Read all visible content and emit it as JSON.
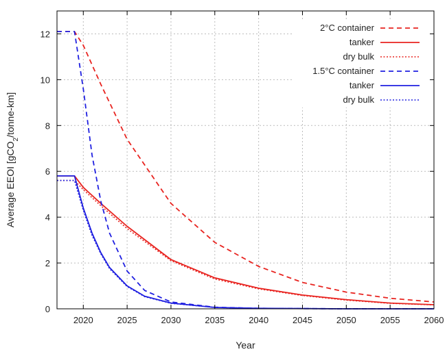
{
  "chart_data": {
    "type": "line",
    "title": "",
    "xlabel": "Year",
    "ylabel": "Average EEOI [gCO2/tonne-km]",
    "ylabel_main": "Average EEOI [gCO",
    "ylabel_sub": "2",
    "ylabel_tail": "/tonne-km]",
    "xlim": [
      2017,
      2060
    ],
    "ylim": [
      0,
      13
    ],
    "xticks": [
      2020,
      2025,
      2030,
      2035,
      2040,
      2045,
      2050,
      2055,
      2060
    ],
    "yticks": [
      0,
      2,
      4,
      6,
      8,
      10,
      12
    ],
    "grid": true,
    "legend_position": "top-right",
    "series": [
      {
        "name": "2°C container",
        "color": "#e8231f",
        "dash": "dashed",
        "x": [
          2017,
          2019,
          2020,
          2022,
          2025,
          2030,
          2035,
          2040,
          2045,
          2050,
          2055,
          2060
        ],
        "y": [
          12.1,
          12.1,
          11.5,
          9.8,
          7.4,
          4.6,
          2.9,
          1.85,
          1.15,
          0.73,
          0.46,
          0.3
        ]
      },
      {
        "name": "tanker",
        "color": "#e8231f",
        "dash": "solid",
        "x": [
          2017,
          2019,
          2020,
          2022,
          2025,
          2030,
          2035,
          2040,
          2045,
          2050,
          2055,
          2060
        ],
        "y": [
          5.8,
          5.8,
          5.3,
          4.6,
          3.6,
          2.15,
          1.35,
          0.9,
          0.6,
          0.4,
          0.25,
          0.18
        ]
      },
      {
        "name": "dry bulk",
        "color": "#e8231f",
        "dash": "dotted",
        "x": [
          2017,
          2019,
          2020,
          2022,
          2025,
          2030,
          2035,
          2040,
          2045,
          2050,
          2055,
          2060
        ],
        "y": [
          5.6,
          5.6,
          5.2,
          4.5,
          3.5,
          2.1,
          1.3,
          0.87,
          0.58,
          0.38,
          0.24,
          0.17
        ]
      },
      {
        "name": "1.5°C container",
        "color": "#1f1fe0",
        "dash": "dashed",
        "x": [
          2017,
          2019,
          2020,
          2021,
          2022,
          2023,
          2025,
          2027,
          2030,
          2035,
          2040,
          2050,
          2060
        ],
        "y": [
          12.1,
          12.1,
          9.6,
          6.7,
          4.7,
          3.3,
          1.65,
          0.8,
          0.3,
          0.07,
          0.02,
          0.0,
          0.0
        ]
      },
      {
        "name": "tanker",
        "color": "#1f1fe0",
        "dash": "solid",
        "x": [
          2017,
          2019,
          2020,
          2021,
          2022,
          2023,
          2025,
          2027,
          2030,
          2035,
          2040,
          2050,
          2060
        ],
        "y": [
          5.8,
          5.8,
          4.4,
          3.3,
          2.45,
          1.8,
          1.0,
          0.55,
          0.25,
          0.06,
          0.02,
          0.0,
          0.0
        ]
      },
      {
        "name": "dry bulk",
        "color": "#1f1fe0",
        "dash": "dotted",
        "x": [
          2017,
          2019,
          2020,
          2021,
          2022,
          2023,
          2025,
          2027,
          2030,
          2035,
          2040,
          2050,
          2060
        ],
        "y": [
          5.6,
          5.6,
          4.3,
          3.2,
          2.4,
          1.75,
          0.97,
          0.53,
          0.24,
          0.06,
          0.02,
          0.0,
          0.0
        ]
      }
    ]
  }
}
